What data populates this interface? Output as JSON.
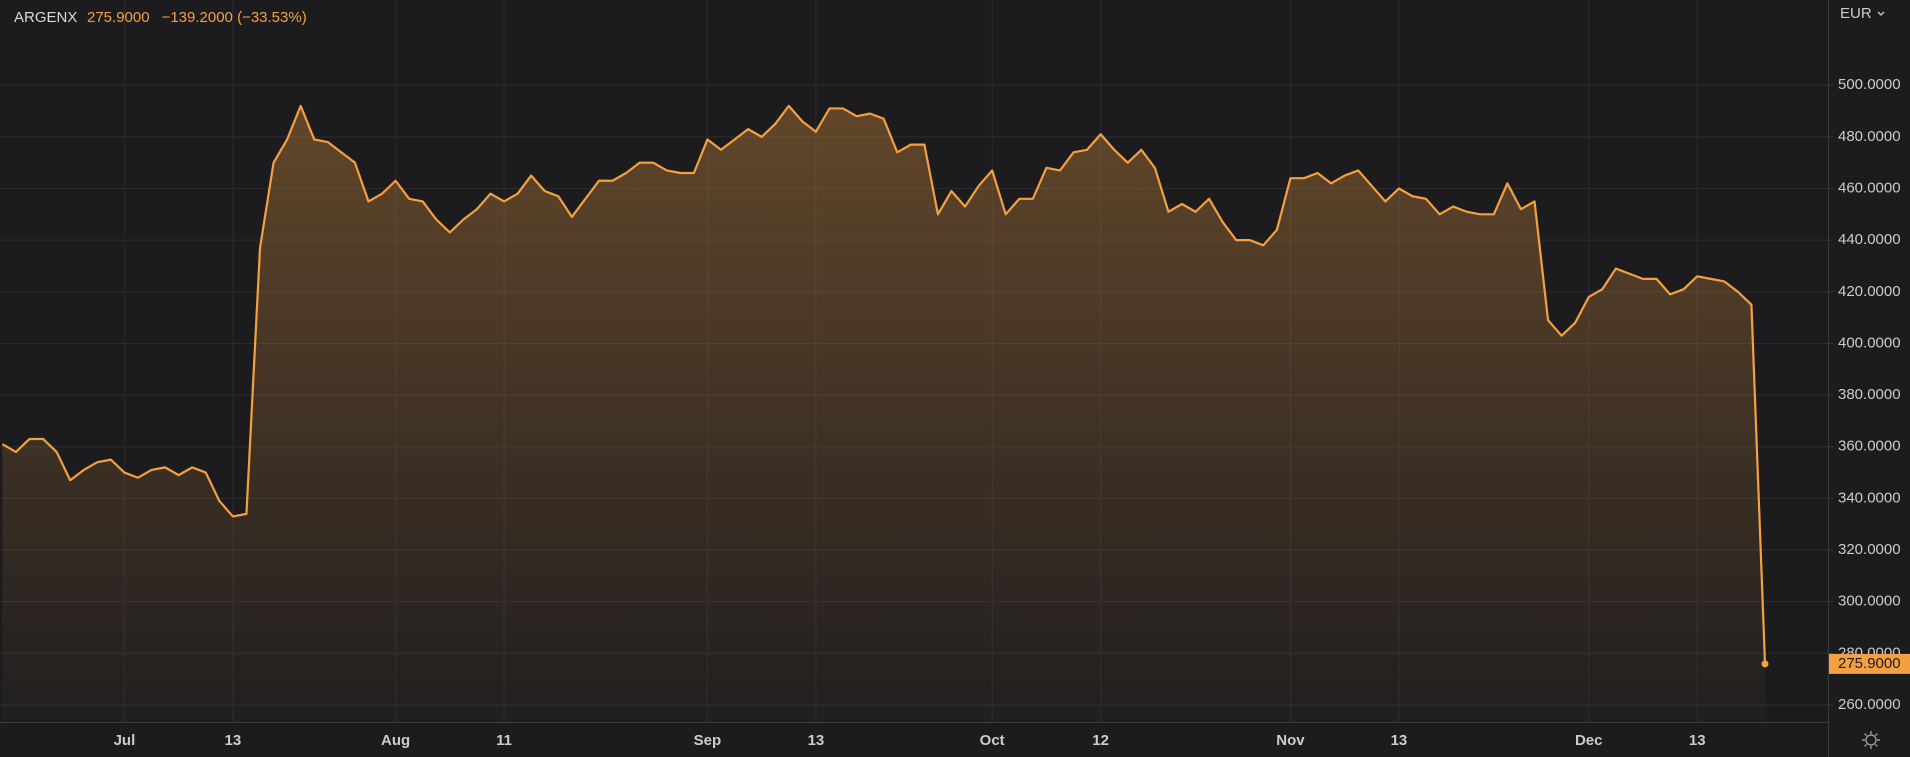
{
  "chart_data": {
    "type": "line",
    "title": "ARGENX",
    "price_label": "275.9000",
    "change_label": "−139.2000 (−33.53%)",
    "currency": "EUR",
    "color": "#f5a040",
    "grid": true,
    "categories": [
      null,
      null,
      null,
      null,
      null,
      null,
      null,
      null,
      null,
      "Jul",
      null,
      null,
      null,
      null,
      null,
      null,
      null,
      "13",
      null,
      null,
      null,
      null,
      null,
      null,
      null,
      null,
      null,
      null,
      null,
      "Aug",
      null,
      null,
      null,
      null,
      null,
      null,
      null,
      "11",
      null,
      null,
      null,
      null,
      null,
      null,
      null,
      null,
      null,
      null,
      null,
      null,
      null,
      null,
      "Sep",
      null,
      null,
      null,
      null,
      null,
      null,
      null,
      "13",
      null,
      null,
      null,
      null,
      null,
      null,
      null,
      null,
      null,
      null,
      null,
      null,
      "Oct",
      null,
      null,
      null,
      null,
      null,
      null,
      null,
      "12",
      null,
      null,
      null,
      null,
      null,
      null,
      null,
      null,
      null,
      null,
      null,
      null,
      null,
      "Nov",
      null,
      null,
      null,
      null,
      null,
      null,
      null,
      "13",
      null,
      null,
      null,
      null,
      null,
      null,
      null,
      null,
      null,
      null,
      null,
      null,
      null,
      "Dec",
      null,
      null,
      null,
      null,
      null,
      null,
      null,
      "13",
      null,
      null,
      null,
      null,
      null
    ],
    "values": [
      361,
      358,
      363,
      363,
      358,
      347,
      351,
      354,
      355,
      350,
      348,
      351,
      352,
      349,
      352,
      350,
      339,
      333,
      334,
      437,
      470,
      479,
      492,
      479,
      478,
      474,
      470,
      455,
      458,
      463,
      456,
      455,
      448,
      443,
      448,
      452,
      458,
      455,
      458,
      465,
      459,
      457,
      449,
      456,
      463,
      463,
      466,
      470,
      470,
      467,
      466,
      466,
      479,
      475,
      479,
      483,
      480,
      485,
      492,
      486,
      482,
      491,
      491,
      488,
      489,
      487,
      474,
      477,
      477,
      450,
      459,
      453,
      461,
      467,
      450,
      456,
      456,
      468,
      467,
      474,
      475,
      481,
      475,
      470,
      475,
      468,
      451,
      454,
      451,
      456,
      447,
      440,
      440,
      438,
      444,
      464,
      464,
      466,
      462,
      465,
      467,
      461,
      455,
      460,
      457,
      456,
      450,
      453,
      451,
      450,
      450,
      462,
      452,
      455,
      409,
      403,
      408,
      418,
      421,
      429,
      427,
      425,
      425,
      419,
      421,
      426,
      425,
      424,
      420,
      415,
      275.9
    ],
    "ylim": [
      253.4,
      533
    ],
    "yticks": [
      {
        "value": 260,
        "label": "260.0000"
      },
      {
        "value": 280,
        "label": "280.0000"
      },
      {
        "value": 300,
        "label": "300.0000"
      },
      {
        "value": 320,
        "label": "320.0000"
      },
      {
        "value": 340,
        "label": "340.0000"
      },
      {
        "value": 360,
        "label": "360.0000"
      },
      {
        "value": 380,
        "label": "380.0000"
      },
      {
        "value": 400,
        "label": "400.0000"
      },
      {
        "value": 420,
        "label": "420.0000"
      },
      {
        "value": 440,
        "label": "440.0000"
      },
      {
        "value": 460,
        "label": "460.0000"
      },
      {
        "value": 480,
        "label": "480.0000"
      },
      {
        "value": 500,
        "label": "500.0000"
      }
    ]
  }
}
